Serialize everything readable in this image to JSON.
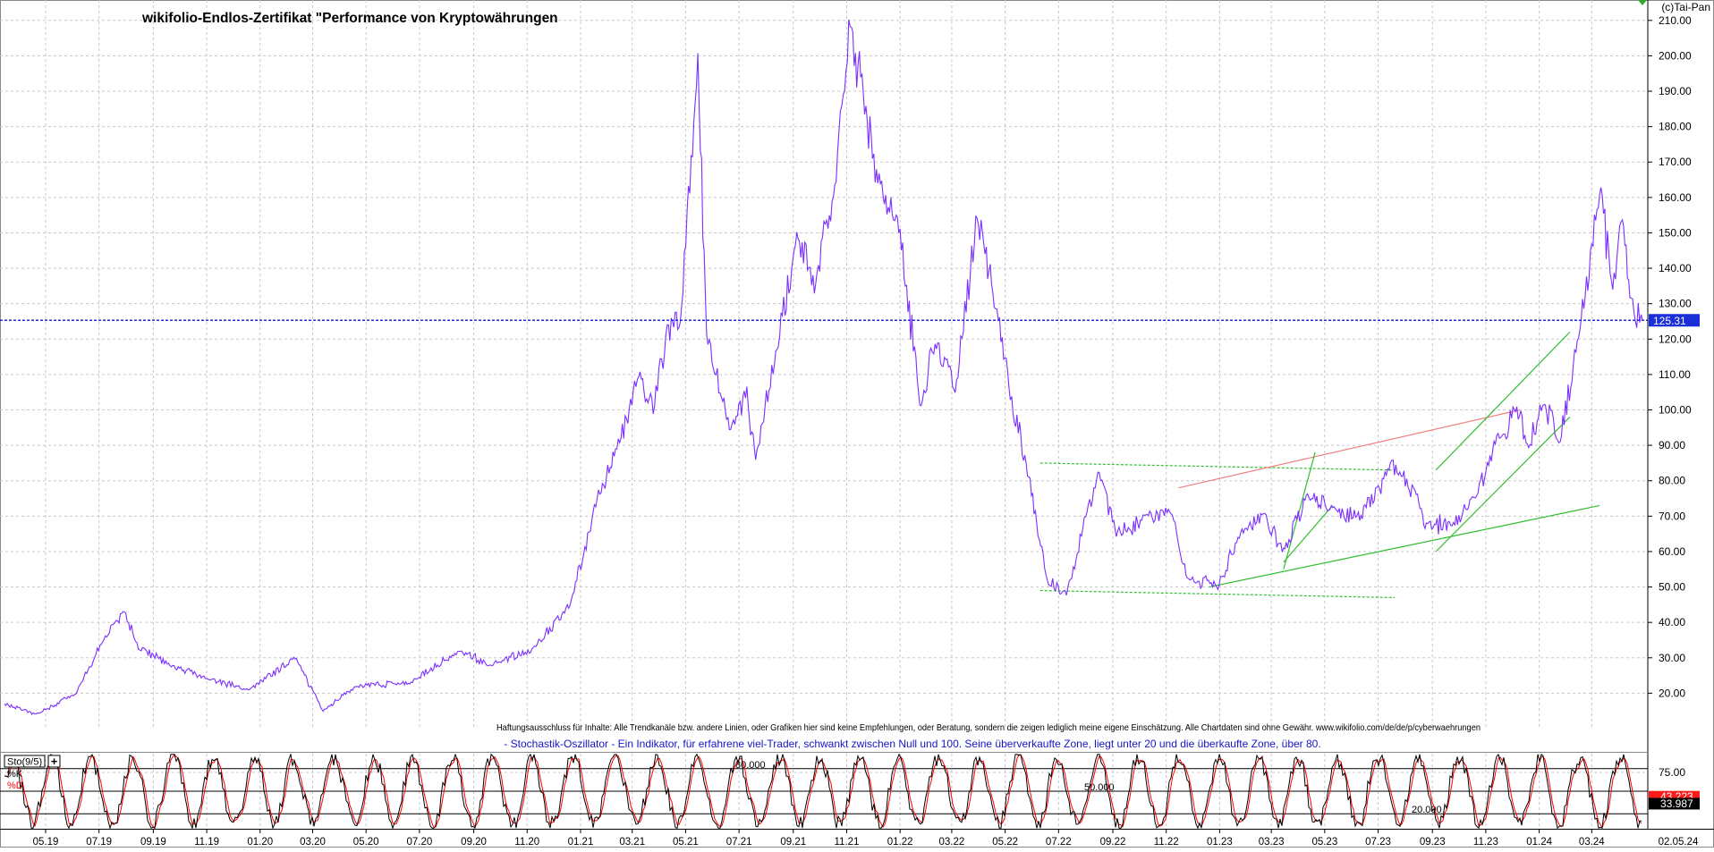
{
  "chart_data": [
    {
      "type": "line",
      "title": "wikifolio-Endlos-Zertifikat \"Performance von Kryptowährungen",
      "copyright": "(c)Tai-Pan",
      "ylim": [
        10,
        215
      ],
      "yticks": [
        20,
        30,
        40,
        50,
        60,
        70,
        80,
        90,
        100,
        110,
        120,
        130,
        140,
        150,
        160,
        170,
        180,
        190,
        200,
        210
      ],
      "ytick_labels": [
        "20.00",
        "30.00",
        "40.00",
        "50.00",
        "60.00",
        "70.00",
        "80.00",
        "90.00",
        "100.00",
        "110.00",
        "120.00",
        "130.00",
        "140.00",
        "150.00",
        "160.00",
        "170.00",
        "180.00",
        "190.00",
        "200.00",
        "210.00"
      ],
      "grid": true,
      "price_line_color": "#7b2fff",
      "last_value": 125.31,
      "last_value_label": "125.31",
      "disclaimer": "Haftungsausschluss für Inhalte: Alle Trendkanäle bzw. andere Linien, oder Grafiken hier sind keine Empfehlungen, oder Beratung, sondern die zeigen lediglich meine eigene Einschätzung. Alle Chartdaten sind ohne Gewähr.  www.wikifolio.com/de/de/p/cyberwaehrungen",
      "x_start": "2019-03-15",
      "x_end": "2024-05-02",
      "anchors": [
        [
          "2019-03-15",
          17
        ],
        [
          "2019-04-20",
          14
        ],
        [
          "2019-06-05",
          20
        ],
        [
          "2019-07-05",
          35
        ],
        [
          "2019-07-30",
          43
        ],
        [
          "2019-08-15",
          33
        ],
        [
          "2019-09-20",
          28
        ],
        [
          "2019-11-01",
          24
        ],
        [
          "2019-12-20",
          21
        ],
        [
          "2020-02-10",
          30
        ],
        [
          "2020-03-13",
          15
        ],
        [
          "2020-04-20",
          22
        ],
        [
          "2020-06-20",
          23
        ],
        [
          "2020-08-15",
          32
        ],
        [
          "2020-09-20",
          28
        ],
        [
          "2020-11-05",
          32
        ],
        [
          "2020-12-20",
          45
        ],
        [
          "2021-01-20",
          75
        ],
        [
          "2021-02-10",
          88
        ],
        [
          "2021-03-10",
          110
        ],
        [
          "2021-03-25",
          100
        ],
        [
          "2021-04-10",
          122
        ],
        [
          "2021-04-25",
          125
        ],
        [
          "2021-05-15",
          200
        ],
        [
          "2021-05-25",
          120
        ],
        [
          "2021-06-20",
          95
        ],
        [
          "2021-07-10",
          105
        ],
        [
          "2021-07-20",
          85
        ],
        [
          "2021-08-15",
          120
        ],
        [
          "2021-09-05",
          150
        ],
        [
          "2021-09-25",
          135
        ],
        [
          "2021-10-20",
          165
        ],
        [
          "2021-11-05",
          210
        ],
        [
          "2021-11-20",
          190
        ],
        [
          "2021-12-05",
          165
        ],
        [
          "2022-01-01",
          150
        ],
        [
          "2022-01-25",
          100
        ],
        [
          "2022-02-10",
          120
        ],
        [
          "2022-03-05",
          105
        ],
        [
          "2022-03-30",
          155
        ],
        [
          "2022-04-20",
          130
        ],
        [
          "2022-05-10",
          100
        ],
        [
          "2022-05-25",
          85
        ],
        [
          "2022-06-18",
          52
        ],
        [
          "2022-07-10",
          48
        ],
        [
          "2022-08-15",
          82
        ],
        [
          "2022-09-05",
          65
        ],
        [
          "2022-10-10",
          70
        ],
        [
          "2022-11-05",
          72
        ],
        [
          "2022-11-25",
          53
        ],
        [
          "2022-12-30",
          50
        ],
        [
          "2023-01-25",
          65
        ],
        [
          "2023-02-20",
          70
        ],
        [
          "2023-03-15",
          60
        ],
        [
          "2023-04-10",
          75
        ],
        [
          "2023-05-10",
          72
        ],
        [
          "2023-06-10",
          70
        ],
        [
          "2023-06-25",
          75
        ],
        [
          "2023-07-15",
          85
        ],
        [
          "2023-08-15",
          75
        ],
        [
          "2023-08-25",
          67
        ],
        [
          "2023-09-25",
          68
        ],
        [
          "2023-10-20",
          75
        ],
        [
          "2023-11-15",
          92
        ],
        [
          "2023-12-05",
          100
        ],
        [
          "2023-12-20",
          90
        ],
        [
          "2024-01-05",
          102
        ],
        [
          "2024-01-25",
          92
        ],
        [
          "2024-02-15",
          120
        ],
        [
          "2024-03-10",
          162
        ],
        [
          "2024-03-25",
          135
        ],
        [
          "2024-04-05",
          155
        ],
        [
          "2024-04-15",
          130
        ],
        [
          "2024-04-28",
          125.31
        ]
      ],
      "trendlines": [
        {
          "color": "#2fbe2f",
          "dashed": true,
          "from": [
            "2022-06-10",
            85
          ],
          "to": [
            "2023-07-20",
            83
          ]
        },
        {
          "color": "#2fbe2f",
          "dashed": true,
          "from": [
            "2022-06-10",
            49
          ],
          "to": [
            "2023-07-20",
            47
          ]
        },
        {
          "color": "#2fbe2f",
          "dashed": false,
          "from": [
            "2022-12-20",
            50
          ],
          "to": [
            "2024-03-10",
            73
          ]
        },
        {
          "color": "#f28080",
          "dashed": false,
          "from": [
            "2022-11-15",
            78
          ],
          "to": [
            "2023-12-10",
            100
          ]
        },
        {
          "color": "#2fbe2f",
          "dashed": false,
          "from": [
            "2023-03-15",
            55
          ],
          "to": [
            "2023-04-20",
            88
          ]
        },
        {
          "color": "#2fbe2f",
          "dashed": false,
          "from": [
            "2023-03-15",
            57
          ],
          "to": [
            "2023-05-10",
            73
          ]
        },
        {
          "color": "#2fbe2f",
          "dashed": false,
          "from": [
            "2023-09-05",
            83
          ],
          "to": [
            "2024-02-05",
            122
          ]
        },
        {
          "color": "#2fbe2f",
          "dashed": false,
          "from": [
            "2023-09-05",
            60
          ],
          "to": [
            "2024-02-05",
            98
          ]
        }
      ]
    },
    {
      "type": "line",
      "title": "- Stochastik-Oszillator - Ein Indikator, für erfahrene viel-Trader, schwankt zwischen Null und 100. Seine überverkaufte Zone, liegt unter 20 und die überkaufte Zone, über 80.",
      "indicator_label": "Sto(9/5)",
      "plus_sign": "+",
      "ylim": [
        0,
        100
      ],
      "yticks": [
        75
      ],
      "ytick_labels": [
        "75.00"
      ],
      "series": [
        {
          "name": "%K",
          "color": "#000000",
          "last_value_label": "33.987",
          "last_value": 33.987
        },
        {
          "name": "%D",
          "color": "#ff0000",
          "last_value_label": "43.223",
          "last_value": 43.223
        }
      ],
      "reference_lines": [
        {
          "value": 80,
          "label": "80.000"
        },
        {
          "value": 50,
          "label": "50.000"
        },
        {
          "value": 20,
          "label": "20.000"
        }
      ],
      "x_tick_labels": [
        "05.19",
        "07.19",
        "09.19",
        "11.19",
        "01.20",
        "03.20",
        "05.20",
        "07.20",
        "09.20",
        "11.20",
        "01.21",
        "03.21",
        "05.21",
        "07.21",
        "09.21",
        "11.21",
        "01.22",
        "03.22",
        "05.22",
        "07.22",
        "09.22",
        "11.22",
        "01.23",
        "03.23",
        "05.23",
        "07.23",
        "09.23",
        "11.23",
        "01.24",
        "03.24"
      ],
      "x_tick_dates": [
        "2019-05-01",
        "2019-07-01",
        "2019-09-01",
        "2019-11-01",
        "2020-01-01",
        "2020-03-01",
        "2020-05-01",
        "2020-07-01",
        "2020-09-01",
        "2020-11-01",
        "2021-01-01",
        "2021-03-01",
        "2021-05-01",
        "2021-07-01",
        "2021-09-01",
        "2021-11-01",
        "2022-01-01",
        "2022-03-01",
        "2022-05-01",
        "2022-07-01",
        "2022-09-01",
        "2022-11-01",
        "2023-01-01",
        "2023-03-01",
        "2023-05-01",
        "2023-07-01",
        "2023-09-01",
        "2023-11-01",
        "2024-01-01",
        "2024-03-01"
      ],
      "x_end_label": "02.05.24"
    }
  ]
}
